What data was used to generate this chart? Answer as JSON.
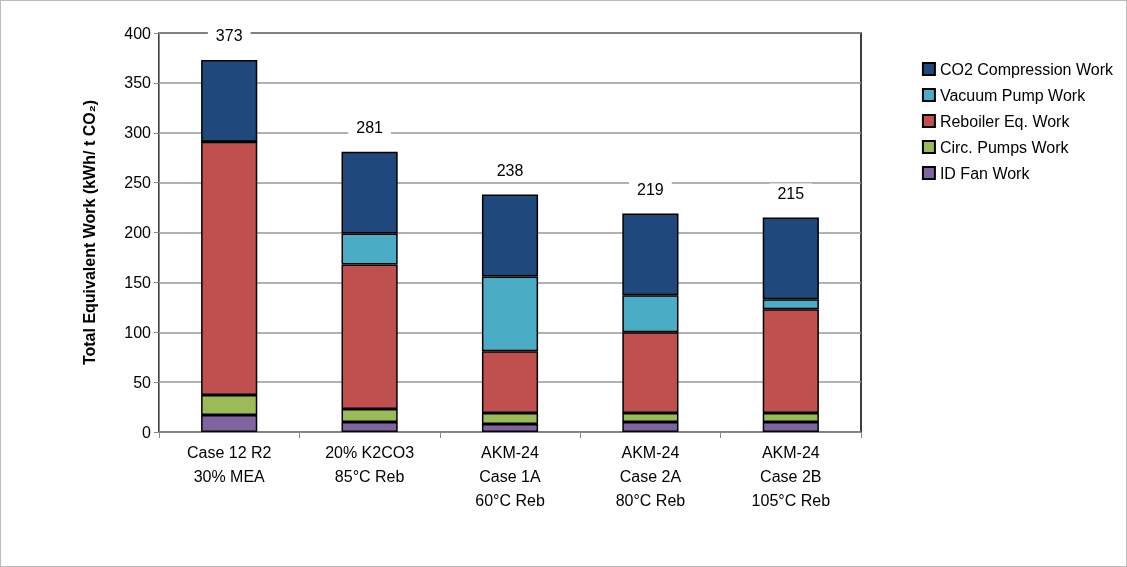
{
  "chart_data": {
    "type": "bar",
    "stacked": true,
    "ylabel": "Total Equivalent Work (kWh/ t CO₂)",
    "categories": [
      "Case 12 R2\n30% MEA",
      "20% K2CO3\n85°C Reb",
      "AKM-24\nCase 1A\n60°C Reb",
      "AKM-24\nCase 2A\n80°C Reb",
      "AKM-24\nCase 2B\n105°C Reb"
    ],
    "series": [
      {
        "name": "ID Fan Work",
        "color": "#8064a2",
        "values": [
          17,
          10,
          8,
          10,
          10
        ]
      },
      {
        "name": "Circ. Pumps Work",
        "color": "#9bbb59",
        "values": [
          20,
          13,
          11,
          9,
          9
        ]
      },
      {
        "name": "Reboiler Eq. Work",
        "color": "#c0504d",
        "values": [
          254,
          145,
          62,
          81,
          104
        ]
      },
      {
        "name": "Vacuum Pump Work",
        "color": "#4bacc6",
        "values": [
          0,
          31,
          75,
          37,
          10
        ]
      },
      {
        "name": "CO2 Compression Work",
        "color": "#1f497d",
        "values": [
          82,
          82,
          82,
          82,
          82
        ]
      }
    ],
    "totals": [
      "373",
      "281",
      "238",
      "219",
      "215"
    ],
    "ylim": [
      0,
      400
    ],
    "yticks": [
      0,
      50,
      100,
      150,
      200,
      250,
      300,
      350,
      400
    ],
    "grid": "y",
    "legend": "right"
  }
}
